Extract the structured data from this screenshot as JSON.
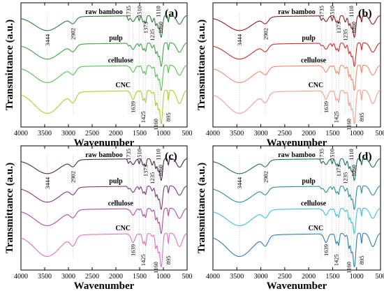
{
  "chart_data": [
    {
      "type": "line",
      "panel_label": "(a)",
      "xlabel": "Wavenumber",
      "ylabel": "Transmittance (a.u.)",
      "xlim": [
        4000,
        500
      ],
      "x_reversed": true,
      "xticks": [
        "4000",
        "3500",
        "3000",
        "2500",
        "2000",
        "1500",
        "1000",
        "500"
      ],
      "grid": false,
      "series": [
        {
          "name": "raw bamboo",
          "color": "#2f7d3a"
        },
        {
          "name": "pulp",
          "color": "#3ea446"
        },
        {
          "name": "cellulose",
          "color": "#56c24f"
        },
        {
          "name": "CNC",
          "color": "#a8cf2a"
        }
      ],
      "annotations": [
        "3444",
        "2902",
        "1735",
        "1510",
        "1373",
        "1235",
        "1110",
        "1060",
        "1639",
        "1425",
        "1160",
        "895"
      ]
    },
    {
      "type": "line",
      "panel_label": "(b)",
      "xlabel": "Wavenumber",
      "ylabel": "Transmittance (a.u.)",
      "xlim": [
        4000,
        500
      ],
      "x_reversed": true,
      "xticks": [
        "4000",
        "3500",
        "3000",
        "2500",
        "2000",
        "1500",
        "1000",
        "500"
      ],
      "grid": false,
      "series": [
        {
          "name": "raw bamboo",
          "color": "#8b1e1e"
        },
        {
          "name": "pulp",
          "color": "#d22b2b"
        },
        {
          "name": "cellulose",
          "color": "#f08a6a"
        },
        {
          "name": "CNC",
          "color": "#f0a090"
        }
      ],
      "annotations": [
        "3444",
        "2902",
        "1735",
        "1510",
        "1373",
        "1235",
        "1110",
        "1060",
        "1639",
        "1425",
        "1160",
        "895"
      ]
    },
    {
      "type": "line",
      "panel_label": "(c)",
      "xlabel": "Wavenumber",
      "ylabel": "Transmittance (a.u.)",
      "xlim": [
        4000,
        500
      ],
      "x_reversed": true,
      "xticks": [
        "4000",
        "3500",
        "3000",
        "2500",
        "2000",
        "1500",
        "1000",
        "500"
      ],
      "grid": false,
      "series": [
        {
          "name": "raw bamboo",
          "color": "#4a2a4a"
        },
        {
          "name": "pulp",
          "color": "#7a3a7a"
        },
        {
          "name": "cellulose",
          "color": "#b04aa0"
        },
        {
          "name": "CNC",
          "color": "#e070c0"
        }
      ],
      "annotations": [
        "3444",
        "2902",
        "1735",
        "1510",
        "1373",
        "1235",
        "1110",
        "1060",
        "1639",
        "1425",
        "1160",
        "895"
      ]
    },
    {
      "type": "line",
      "panel_label": "(d)",
      "xlabel": "Wavenumber",
      "ylabel": "Transmittance (a.u.)",
      "xlim": [
        4000,
        500
      ],
      "x_reversed": true,
      "xticks": [
        "4000",
        "3500",
        "3000",
        "2500",
        "2000",
        "1500",
        "1000",
        "500"
      ],
      "grid": false,
      "series": [
        {
          "name": "raw bamboo",
          "color": "#1f6f5a"
        },
        {
          "name": "pulp",
          "color": "#2a8f8f"
        },
        {
          "name": "cellulose",
          "color": "#3fc0d8"
        },
        {
          "name": "CNC",
          "color": "#2a7fb0"
        }
      ],
      "annotations": [
        "3444",
        "2902",
        "1735",
        "1510",
        "1373",
        "1235",
        "1110",
        "1060",
        "1639",
        "1425",
        "1160",
        "895"
      ]
    }
  ]
}
